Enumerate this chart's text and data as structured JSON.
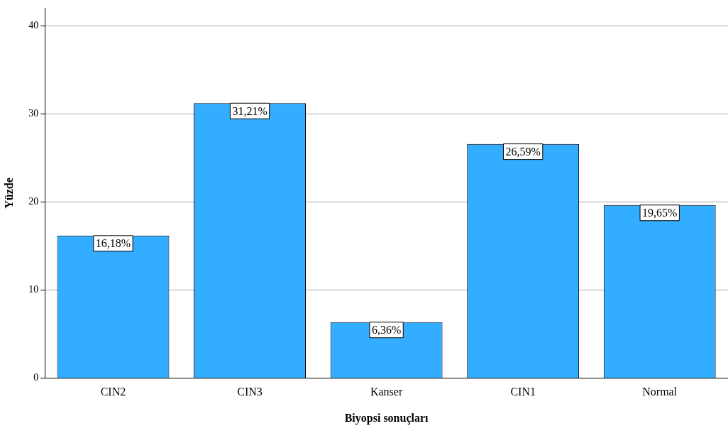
{
  "chart_data": {
    "type": "bar",
    "xlabel": "Biyopsi sonuçları",
    "ylabel": "Yüzde",
    "categories": [
      "CIN2",
      "CIN3",
      "Kanser",
      "CIN1",
      "Normal"
    ],
    "values": [
      16.18,
      31.21,
      6.36,
      26.59,
      19.65
    ],
    "value_labels": [
      "16,18%",
      "31,21%",
      "6,36%",
      "26,59%",
      "19,65%"
    ],
    "color": "#33adff",
    "ylim": [
      0,
      42
    ],
    "yticks": [
      0,
      10,
      20,
      30,
      40
    ],
    "grid": "y"
  }
}
